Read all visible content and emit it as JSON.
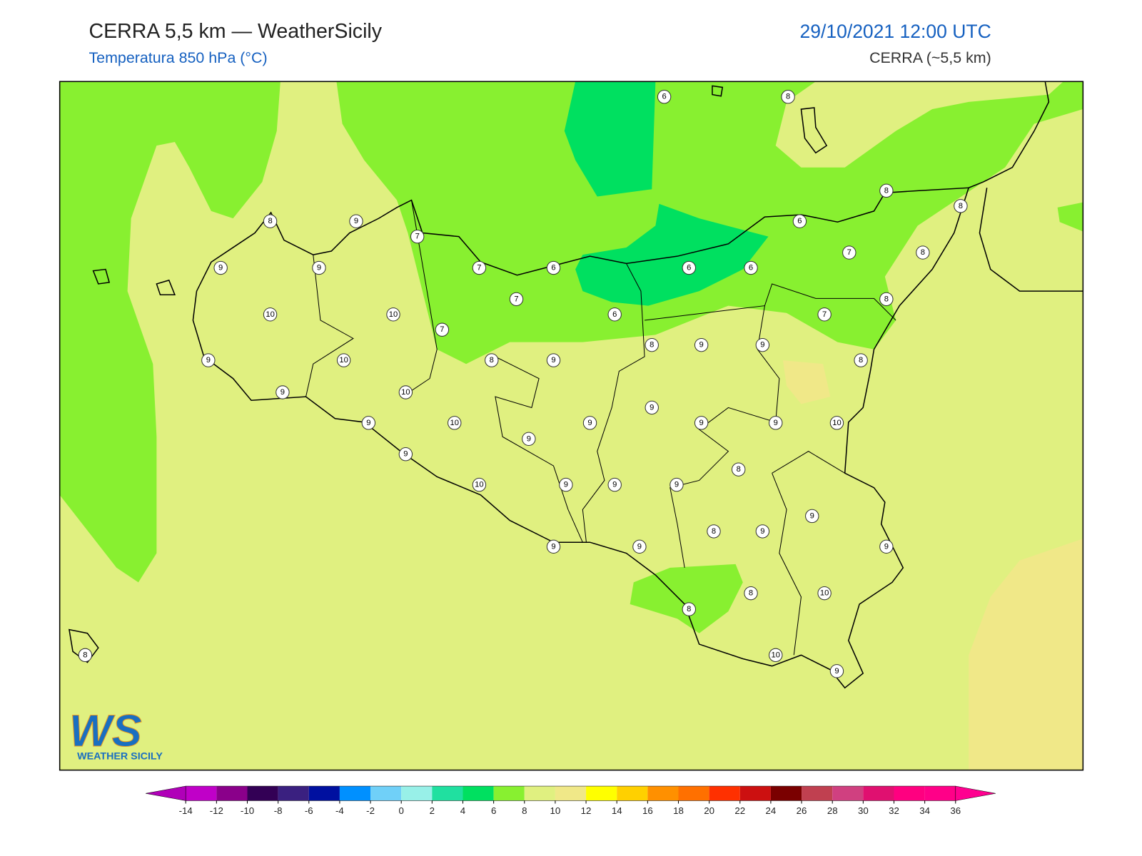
{
  "header": {
    "title": "CERRA 5,5 km — WeatherSicily",
    "subtitle": "Temperatura 850 hPa (°C)",
    "datetime": "29/10/2021 12:00 UTC",
    "model": "CERRA (~5,5 km)"
  },
  "logo": {
    "mark": "WS",
    "name": "WEATHER SICILY"
  },
  "stations": [
    6,
    8,
    8,
    8,
    8,
    9,
    7,
    6,
    9,
    9,
    7,
    6,
    6,
    6,
    7,
    8,
    10,
    10,
    7,
    6,
    8,
    7,
    7,
    8,
    9,
    9,
    9,
    10,
    8,
    9,
    8,
    9,
    10,
    9,
    10,
    9,
    9,
    9,
    9,
    10,
    9,
    9,
    8,
    10,
    9,
    9,
    9,
    9,
    8,
    9,
    9,
    9,
    9,
    8,
    10,
    8,
    8,
    10,
    9
  ],
  "colorbar": {
    "ticks": [
      -14,
      -12,
      -10,
      -8,
      -6,
      -4,
      -2,
      0,
      2,
      4,
      6,
      8,
      10,
      12,
      14,
      16,
      18,
      20,
      22,
      24,
      26,
      28,
      30,
      32,
      34,
      36
    ],
    "colors": [
      "#b000b8",
      "#c000c8",
      "#8a008a",
      "#330055",
      "#3a2080",
      "#0010a0",
      "#0090ff",
      "#70d0f8",
      "#98f0e8",
      "#20e0a0",
      "#00e060",
      "#88f030",
      "#e0f080",
      "#f0e888",
      "#ffff00",
      "#ffd000",
      "#ff9000",
      "#ff7000",
      "#ff3000",
      "#cc1010",
      "#7a0000",
      "#c04050",
      "#d04080",
      "#e01070",
      "#ff0080",
      "#ff0088",
      "#ff0090"
    ]
  }
}
